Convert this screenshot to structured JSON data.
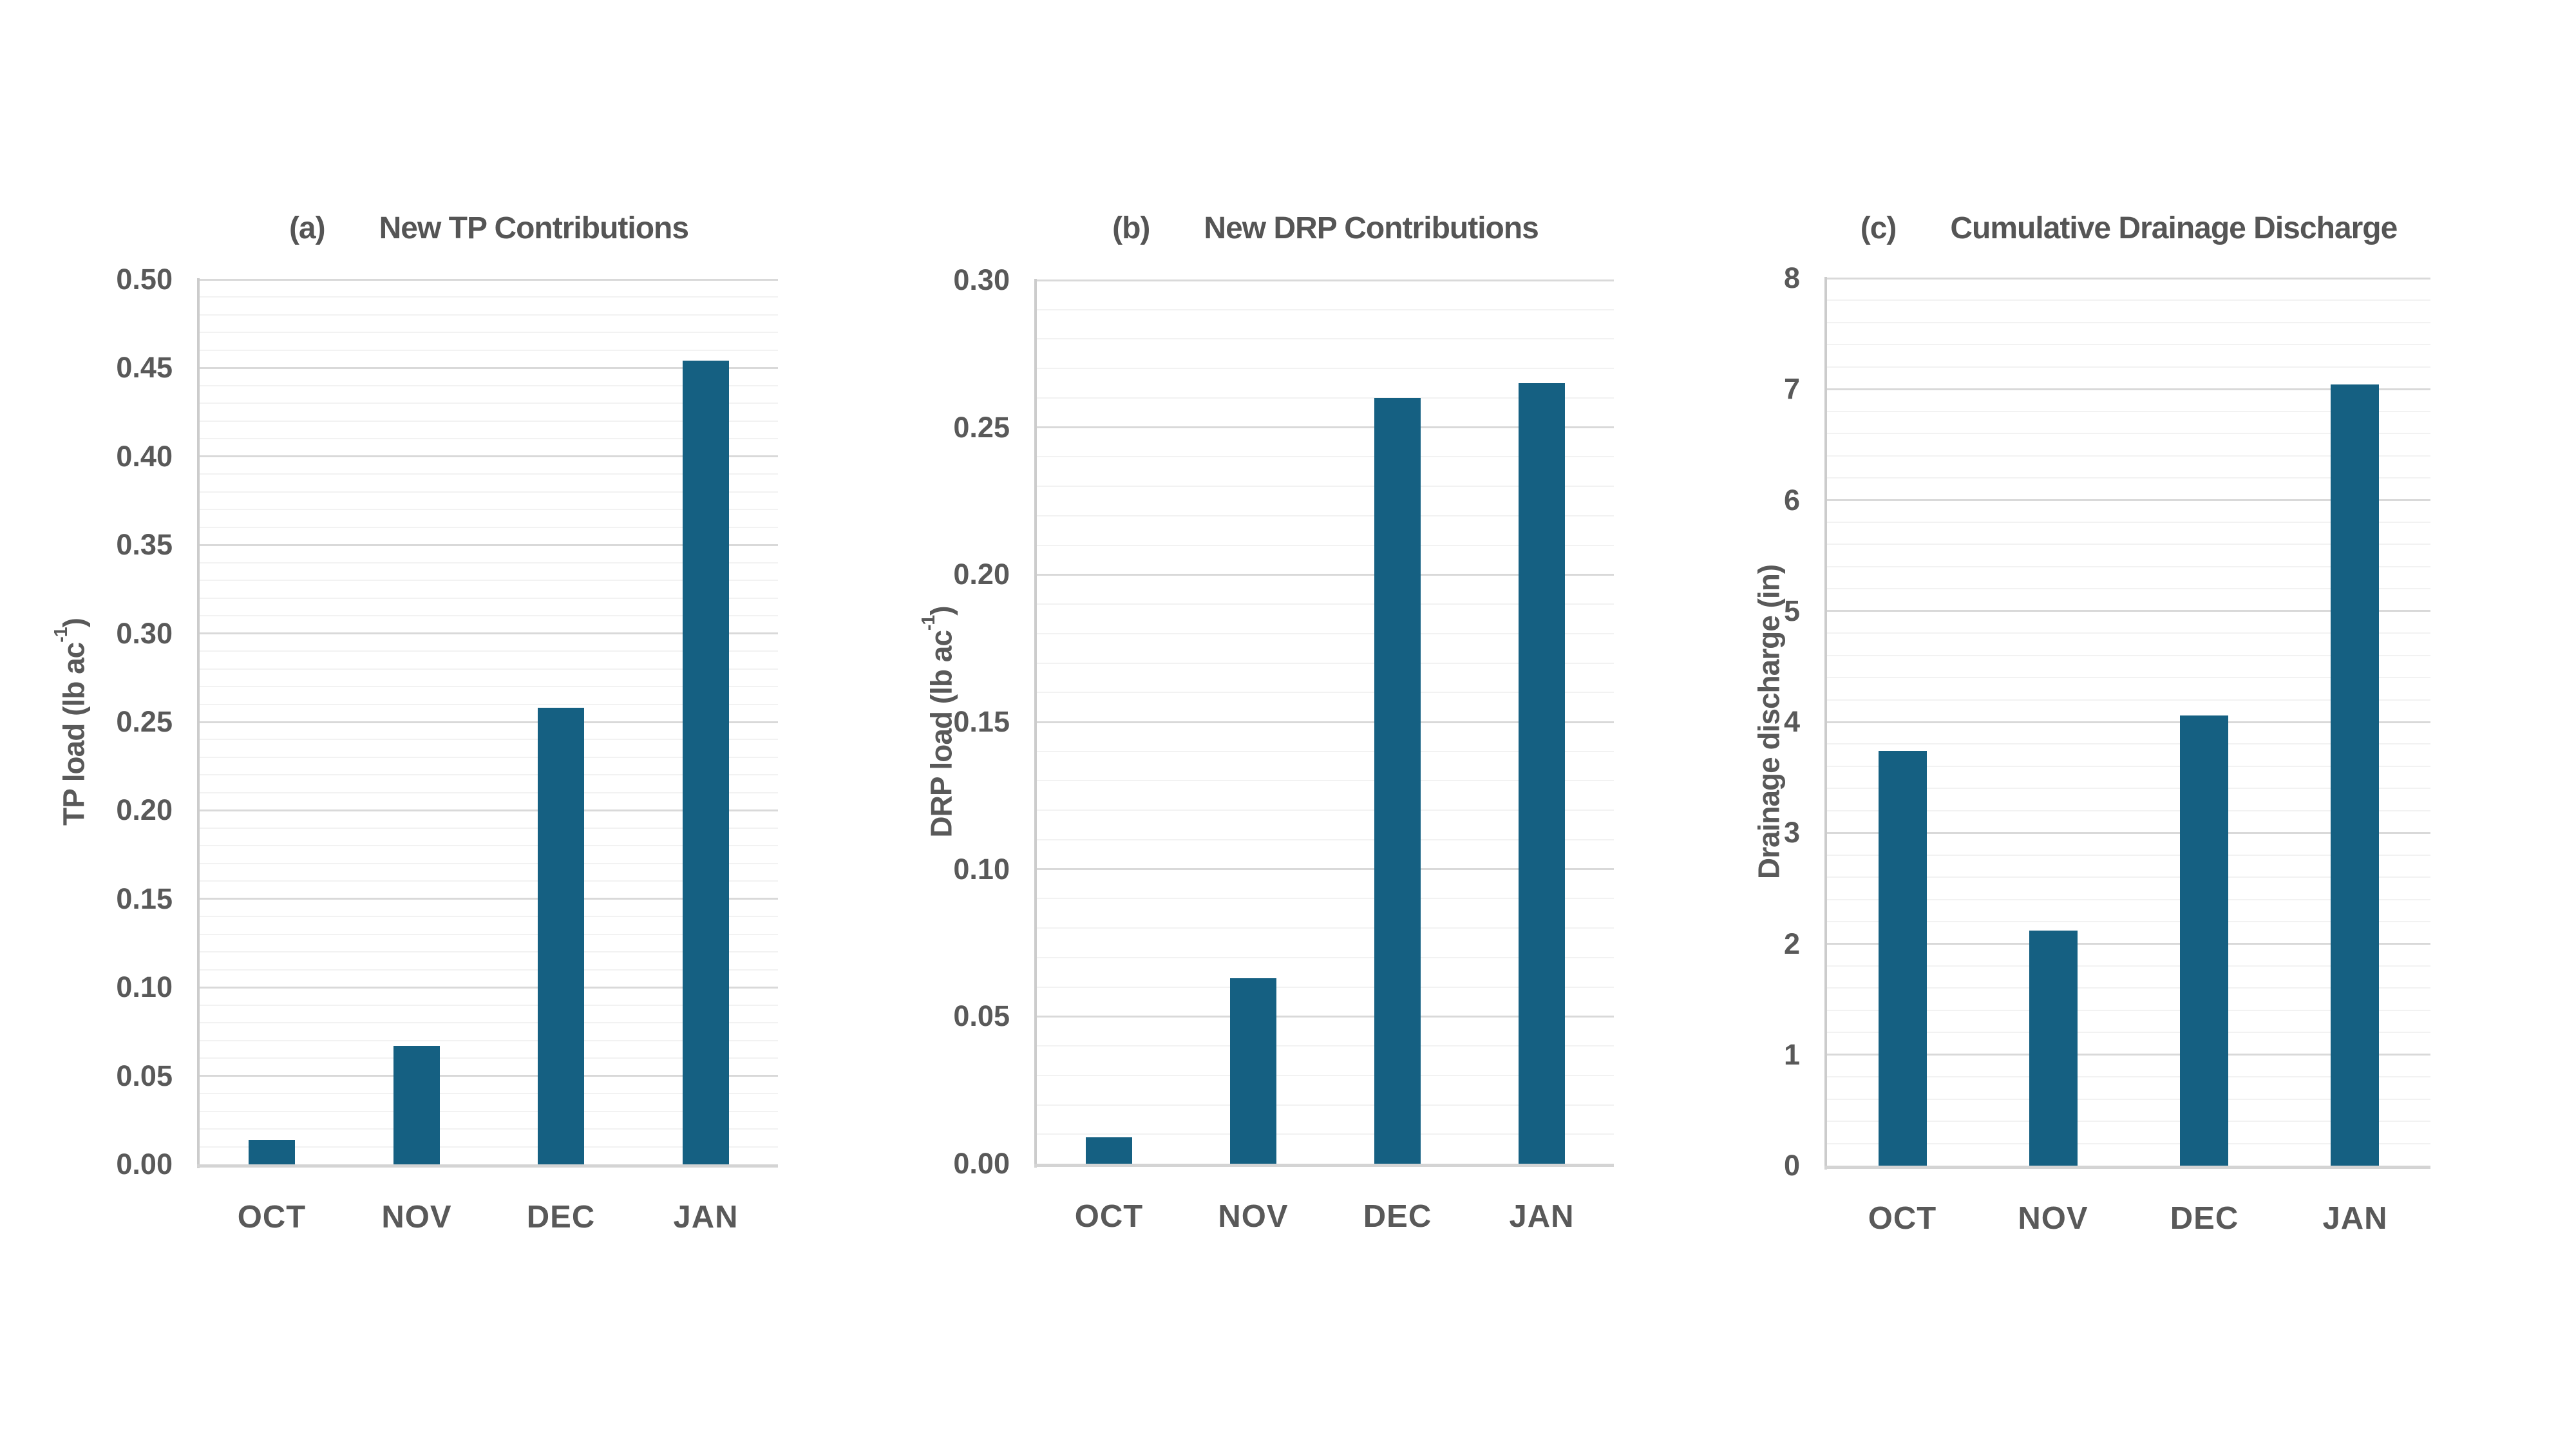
{
  "style": {
    "bar_color": "#156082",
    "major_grid_color": "#d9d9d9",
    "minor_grid_color": "#f2f2f2",
    "axis_line_color": "#cccccc",
    "label_color": "#595959",
    "title_color": "#555555",
    "background": "#ffffff"
  },
  "chart_data": [
    {
      "type": "bar",
      "panel": "(a)",
      "title": "New TP Contributions",
      "categories": [
        "OCT",
        "NOV",
        "DEC",
        "JAN"
      ],
      "values": [
        0.014,
        0.067,
        0.258,
        0.454
      ],
      "ylabel_pre": "TP load (lb ac",
      "ylabel_sup": "-1",
      "ylabel_post": ")",
      "xlabel": "",
      "ylim": [
        0,
        0.5
      ],
      "ytick_step": 0.05,
      "minor_step": 0.01,
      "tick_decimals": 2,
      "grid": "major+minor horizontal",
      "legend": "none"
    },
    {
      "type": "bar",
      "panel": "(b)",
      "title": "New DRP Contributions",
      "categories": [
        "OCT",
        "NOV",
        "DEC",
        "JAN"
      ],
      "values": [
        0.009,
        0.063,
        0.26,
        0.265
      ],
      "ylabel_pre": "DRP load (lb ac",
      "ylabel_sup": "-1",
      "ylabel_post": ")",
      "xlabel": "",
      "ylim": [
        0,
        0.3
      ],
      "ytick_step": 0.05,
      "minor_step": 0.01,
      "tick_decimals": 2,
      "grid": "major+minor horizontal",
      "legend": "none"
    },
    {
      "type": "bar",
      "panel": "(c)",
      "title": "Cumulative Drainage Discharge",
      "categories": [
        "OCT",
        "NOV",
        "DEC",
        "JAN"
      ],
      "values": [
        3.74,
        2.12,
        4.06,
        7.04
      ],
      "ylabel_pre": "Drainage discharge (in)",
      "ylabel_sup": "",
      "ylabel_post": "",
      "xlabel": "",
      "ylim": [
        0,
        8
      ],
      "ytick_step": 1,
      "minor_step": 0.2,
      "tick_decimals": 0,
      "grid": "major+minor horizontal",
      "legend": "none"
    }
  ]
}
